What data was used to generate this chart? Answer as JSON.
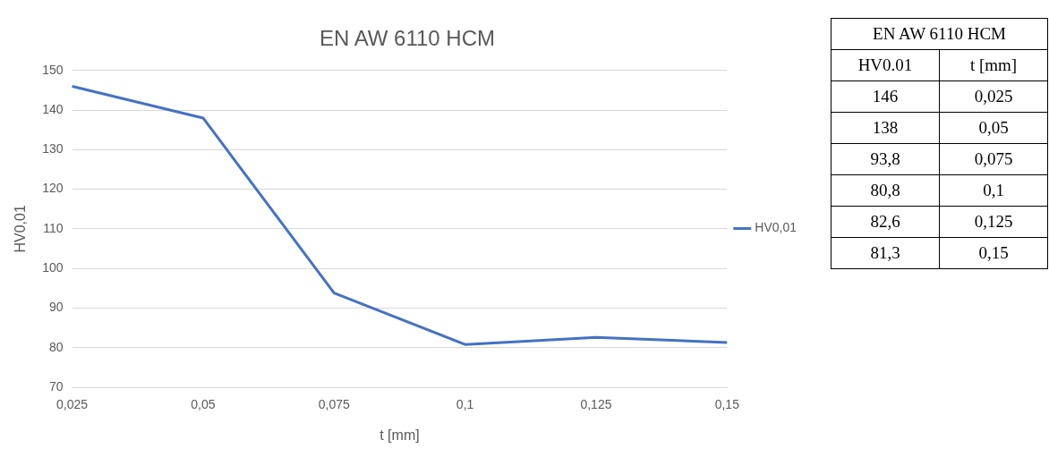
{
  "chart_data": {
    "type": "line",
    "title": "EN AW 6110 HCM",
    "xlabel": "t [mm]",
    "ylabel": "HV0,01",
    "categories": [
      "0,025",
      "0,05",
      "0,075",
      "0,1",
      "0,125",
      "0,15"
    ],
    "series": [
      {
        "name": "HV0,01",
        "color": "#4472c4",
        "values": [
          146,
          138,
          93.8,
          80.8,
          82.6,
          81.3
        ]
      }
    ],
    "value_labels": [
      "146",
      "138",
      "93,8",
      "80,8",
      "82,6",
      "81,3"
    ],
    "annotations": [
      "EN AW 6110 HCM",
      "HV0.01",
      "t [mm]"
    ],
    "ylim": [
      70,
      150
    ],
    "yticks": [
      70,
      80,
      90,
      100,
      110,
      120,
      130,
      140,
      150
    ],
    "grid": "y",
    "legend": "right",
    "marker": "none",
    "line_style": "solid"
  }
}
